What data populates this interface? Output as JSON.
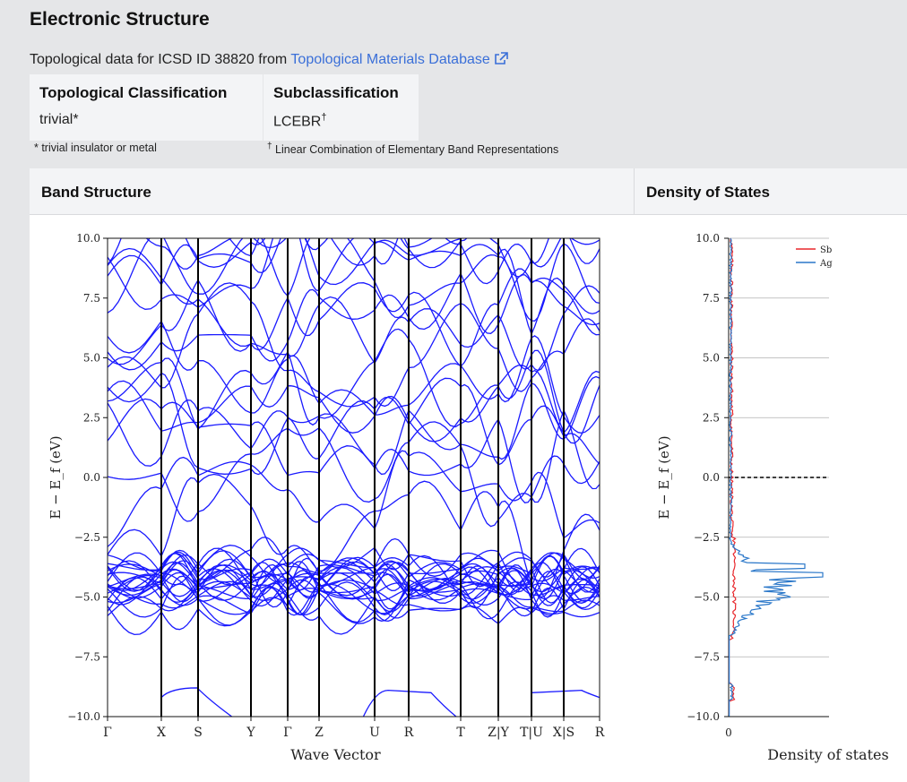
{
  "page_title": "Electronic Structure",
  "intro": {
    "prefix": "Topological data for ICSD ID 38820 from ",
    "link": "Topological Materials Database"
  },
  "classification": {
    "topo_header": "Topological Classification",
    "topo_value": "trivial*",
    "sub_header": "Subclassification",
    "sub_value": "LCEBR",
    "sub_mark": "†"
  },
  "notes": {
    "trivial": "* trivial insulator or metal",
    "lcebr_mark": "†",
    "lcebr": " Linear Combination of Elementary Band Representations"
  },
  "panels": {
    "band_title": "Band Structure",
    "dos_title": "Density of States"
  },
  "colors": {
    "link": "#3a6fd8",
    "bands": "#1a1aff",
    "sb": "#e8262b",
    "ag": "#2a77c9"
  },
  "chart_data": [
    {
      "type": "line",
      "title": "",
      "xlabel": "Wave Vector",
      "ylabel": "E − E_f (eV)",
      "ylim": [
        -10,
        10
      ],
      "yticks": [
        "10.0",
        "7.5",
        "5.0",
        "2.5",
        "0.0",
        "−2.5",
        "−5.0",
        "−7.5",
        "−10.0"
      ],
      "kpoint_labels": [
        "Γ",
        "X",
        "S",
        "Y",
        "Γ",
        "Z",
        "U",
        "R",
        "T",
        "Z|Y",
        "T|U",
        "X|S",
        "R"
      ],
      "grid": false
    },
    {
      "type": "line",
      "title": "",
      "xlabel": "Density of states",
      "ylabel": "E − E_f (eV)",
      "ylim": [
        -10,
        10
      ],
      "xticks": [
        "0"
      ],
      "yticks": [
        "10.0",
        "7.5",
        "5.0",
        "2.5",
        "0.0",
        "−2.5",
        "−5.0",
        "−7.5",
        "−10.0"
      ],
      "series": [
        {
          "name": "Sb",
          "color": "#e8262b"
        },
        {
          "name": "Ag",
          "color": "#2a77c9"
        }
      ],
      "fermi_level": 0.0,
      "legend": "top-right",
      "grid": true
    }
  ]
}
